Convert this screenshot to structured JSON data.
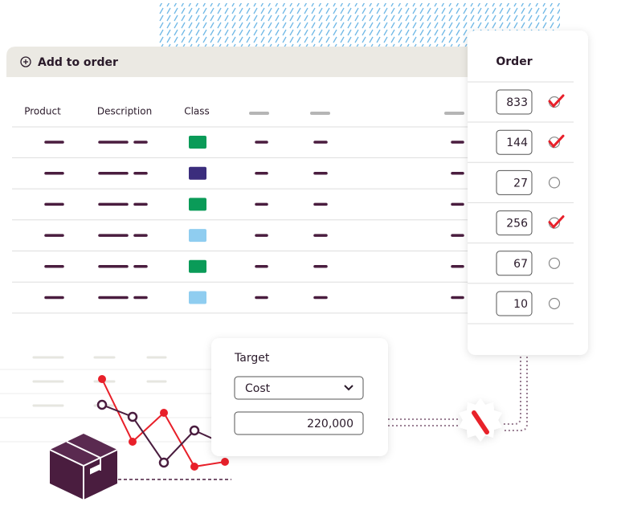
{
  "header": {
    "title": "Add to order"
  },
  "table": {
    "columns": [
      "Product",
      "Description",
      "Class"
    ],
    "rows": [
      {
        "class_color": "#0a9b58"
      },
      {
        "class_color": "#3b2d7d"
      },
      {
        "class_color": "#0a9b58"
      },
      {
        "class_color": "#8fcdf0"
      },
      {
        "class_color": "#0a9b58"
      },
      {
        "class_color": "#8fcdf0"
      }
    ]
  },
  "order": {
    "title": "Order",
    "rows": [
      {
        "quantity": 833,
        "checked": true
      },
      {
        "quantity": 144,
        "checked": true
      },
      {
        "quantity": 27,
        "checked": false
      },
      {
        "quantity": 256,
        "checked": true
      },
      {
        "quantity": 67,
        "checked": false
      },
      {
        "quantity": 10,
        "checked": false
      }
    ]
  },
  "target": {
    "title": "Target",
    "metric": "Cost",
    "value": "220,000"
  }
}
